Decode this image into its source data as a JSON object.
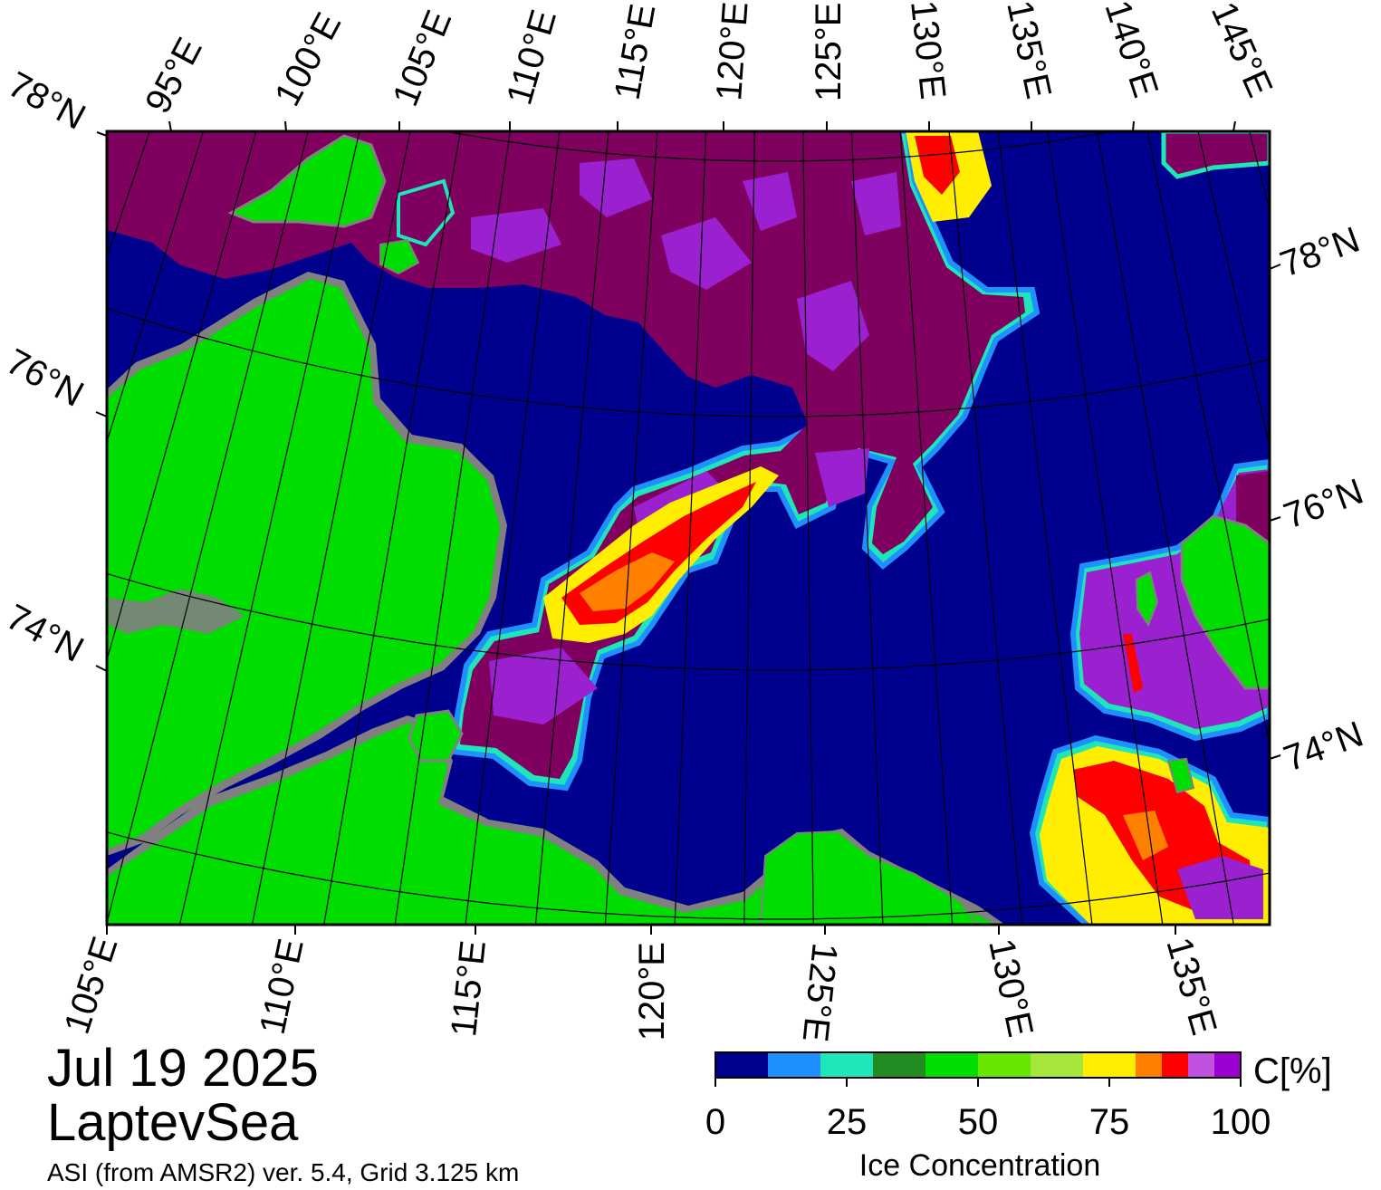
{
  "map": {
    "title_date": "Jul 19 2025",
    "title_region": "LaptevSea",
    "subtitle": "ASI (from AMSR2) ver. 5.4,  Grid 3.125 km",
    "colors": {
      "ocean": "#00008f",
      "land": "#00dd00",
      "land_shadow": "#808080",
      "ice_high": "#800060",
      "ice_purple": "#9a20d0",
      "ice_red": "#ff0000",
      "ice_orange": "#ff8000",
      "ice_yellow": "#ffee00",
      "ice_cyan": "#1ee6b8",
      "ice_blue": "#1e90ff"
    },
    "top_lon_labels": [
      "95°E",
      "100°E",
      "105°E",
      "110°E",
      "115°E",
      "120°E",
      "125°E",
      "130°E",
      "135°E",
      "140°E",
      "145°E"
    ],
    "bottom_lon_labels": [
      "105°E",
      "110°E",
      "115°E",
      "120°E",
      "125°E",
      "130°E",
      "135°E"
    ],
    "left_lat_labels": [
      "78°N",
      "76°N",
      "74°N"
    ],
    "right_lat_labels": [
      "78°N",
      "76°N",
      "74°N"
    ]
  },
  "colorbar": {
    "title": "Ice Concentration",
    "unit": "C[%]",
    "tick_labels": [
      "0",
      "25",
      "50",
      "75",
      "100"
    ],
    "range": [
      0,
      100
    ],
    "colors": [
      "#00008f",
      "#1e90ff",
      "#1ee6b8",
      "#228b22",
      "#00dd00",
      "#66e600",
      "#a6e63a",
      "#ffee00",
      "#ff8000",
      "#ff0000",
      "#c050e0",
      "#9a00d0"
    ]
  }
}
